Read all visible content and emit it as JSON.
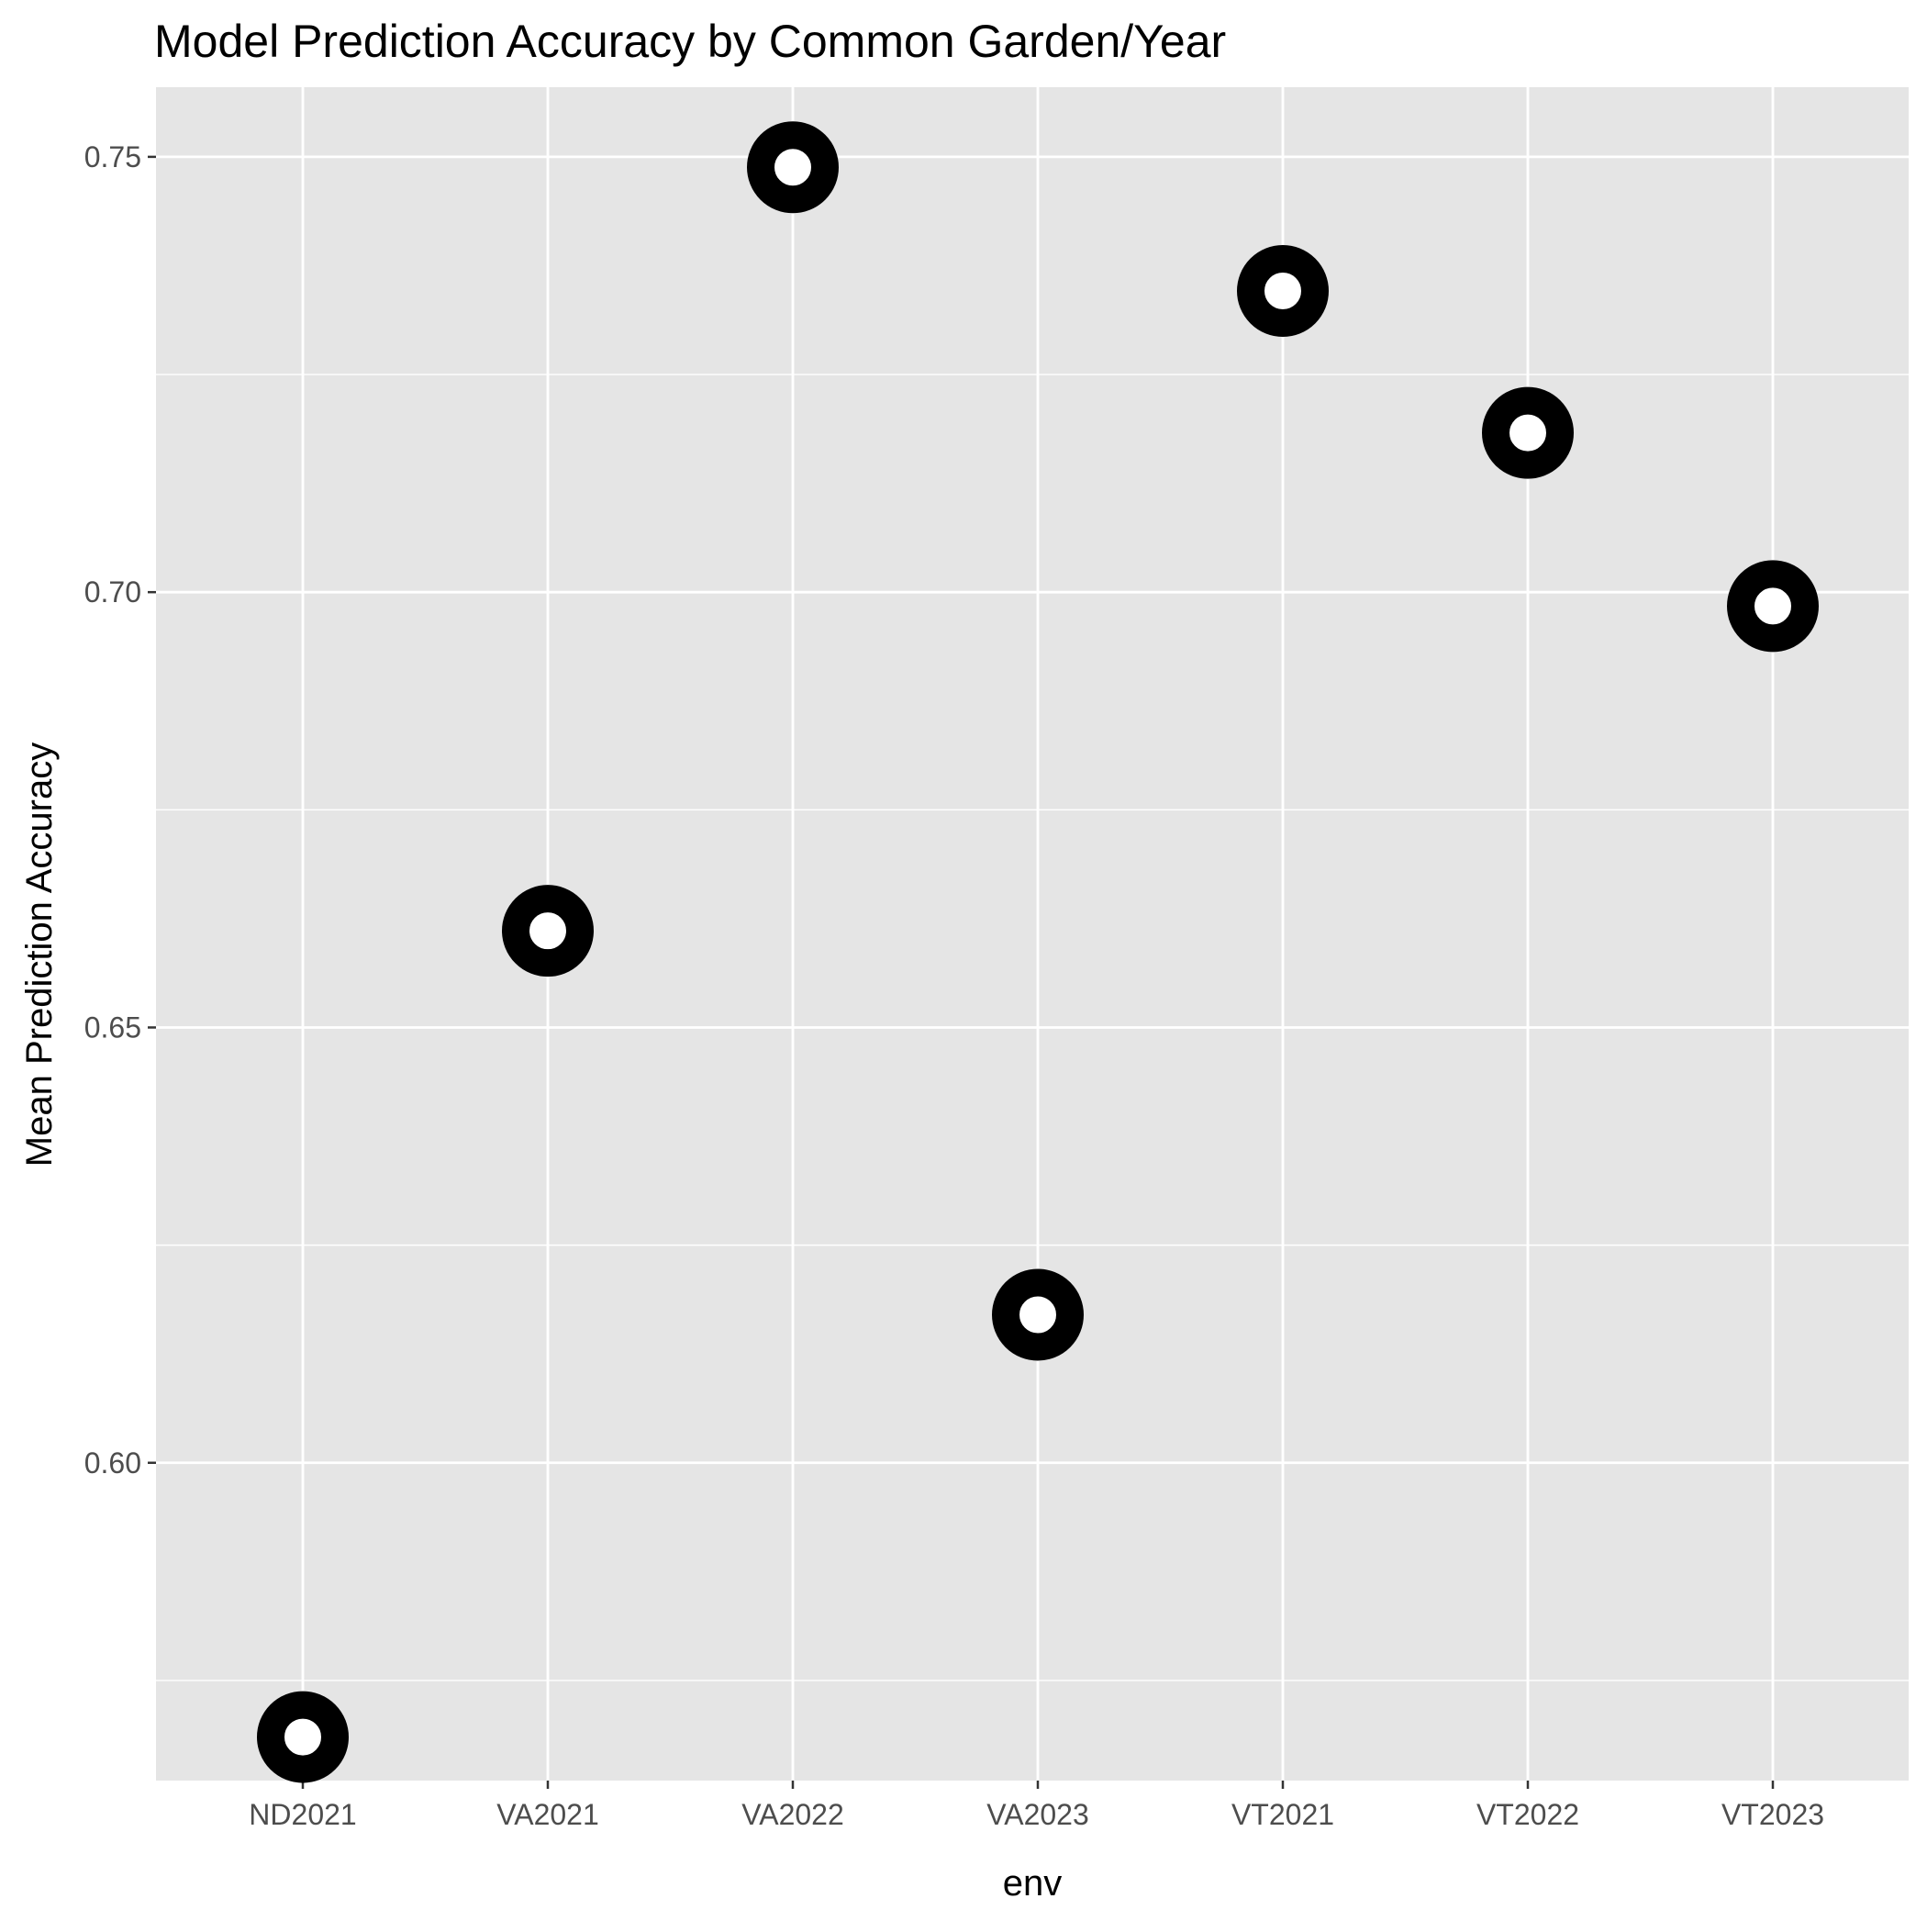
{
  "chart_data": {
    "type": "scatter",
    "title": "Model Prediction Accuracy by Common Garden/Year",
    "xlabel": "env",
    "ylabel": "Mean Prediction Accuracy",
    "categories": [
      "ND2021",
      "VA2021",
      "VA2022",
      "VA2023",
      "VT2021",
      "VT2022",
      "VT2023"
    ],
    "values": [
      0.5685,
      0.6611,
      0.7488,
      0.617,
      0.7346,
      0.7183,
      0.6984
    ],
    "ylim": [
      0.5635,
      0.758
    ],
    "yticks": [
      0.6,
      0.65,
      0.7,
      0.75
    ],
    "ytick_labels": [
      "0.60",
      "0.65",
      "0.70",
      "0.75"
    ],
    "grid": true,
    "legend": "none",
    "colors": {
      "panel_background": "#e5e5e5",
      "grid": "#ffffff",
      "marker_stroke": "#000000",
      "marker_fill": "#ffffff",
      "tick_label": "#4d4d4d",
      "tick_mark": "#333333"
    }
  }
}
